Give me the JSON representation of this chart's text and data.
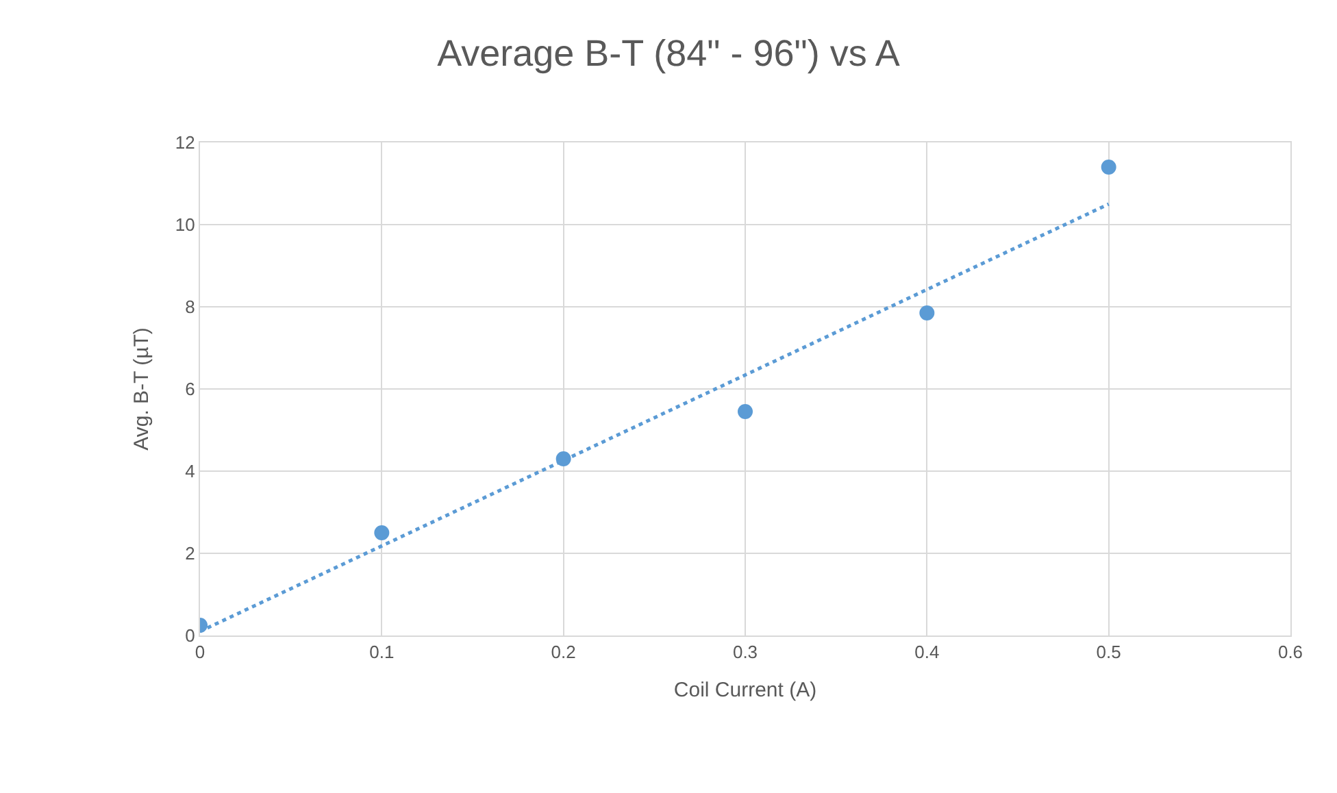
{
  "chart_data": {
    "type": "scatter",
    "title": "Average B-T (84\" - 96\") vs A",
    "xlabel": "Coil Current (A)",
    "ylabel": "Avg. B-T (µT)",
    "x": [
      0,
      0.1,
      0.2,
      0.3,
      0.4,
      0.5
    ],
    "series": [
      {
        "color": "#5b9bd5",
        "values": [
          0.25,
          2.5,
          4.3,
          5.45,
          7.85,
          11.4
        ],
        "marker": "circle"
      },
      {
        "type": "line",
        "color": "#5b9bd5",
        "x": [
          0,
          0.5
        ],
        "values": [
          0.1,
          10.5
        ],
        "line_style": "dotted",
        "marker": "none"
      }
    ],
    "xlim": [
      0,
      0.6
    ],
    "xticks": [
      0,
      0.1,
      0.2,
      0.3,
      0.4,
      0.5,
      0.6
    ],
    "ylim": [
      0,
      12
    ],
    "yticks": [
      0,
      2,
      4,
      6,
      8,
      10,
      12
    ],
    "grid": true
  }
}
